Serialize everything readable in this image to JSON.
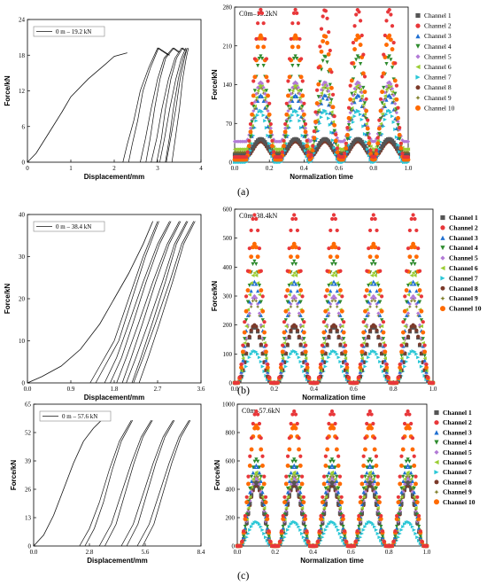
{
  "panel_labels": [
    "(a)",
    "(b)",
    "(c)"
  ],
  "chart_data": [
    {
      "type": "line",
      "panel": "a-left",
      "legend": "0 m – 19.2 kN",
      "xlabel": "Displacement/mm",
      "ylabel": "Force/kN",
      "xlim": [
        0,
        4
      ],
      "ylim": [
        0,
        24
      ],
      "xticks": [
        "0",
        "1",
        "2",
        "3",
        "4"
      ],
      "yticks": [
        "0",
        "6",
        "12",
        "18",
        "24"
      ],
      "loops": [
        [
          [
            2.2,
            0
          ],
          [
            2.3,
            3
          ],
          [
            2.45,
            7
          ],
          [
            2.6,
            12
          ],
          [
            2.8,
            16
          ],
          [
            3.0,
            19.2
          ],
          [
            3.25,
            18
          ]
        ],
        [
          [
            2.6,
            0
          ],
          [
            2.72,
            4
          ],
          [
            2.85,
            9
          ],
          [
            3.0,
            14
          ],
          [
            3.15,
            17.5
          ],
          [
            3.35,
            19.2
          ],
          [
            3.48,
            18.5
          ]
        ],
        [
          [
            2.85,
            0
          ],
          [
            2.98,
            4
          ],
          [
            3.1,
            9
          ],
          [
            3.25,
            14
          ],
          [
            3.4,
            17.5
          ],
          [
            3.55,
            19.2
          ],
          [
            3.62,
            18.8
          ]
        ],
        [
          [
            3.05,
            0
          ],
          [
            3.16,
            4
          ],
          [
            3.28,
            9
          ],
          [
            3.42,
            14
          ],
          [
            3.55,
            17.5
          ],
          [
            3.65,
            19.2
          ]
        ],
        [
          [
            3.2,
            0
          ],
          [
            3.3,
            4
          ],
          [
            3.42,
            9
          ],
          [
            3.52,
            14
          ],
          [
            3.62,
            17.5
          ],
          [
            3.68,
            19.2
          ]
        ]
      ],
      "initial": [
        [
          0,
          0
        ],
        [
          0.2,
          1.5
        ],
        [
          0.5,
          5
        ],
        [
          0.8,
          8.5
        ],
        [
          1.0,
          11
        ],
        [
          1.4,
          14
        ],
        [
          1.8,
          16.5
        ],
        [
          2.0,
          17.8
        ],
        [
          2.3,
          18.4
        ]
      ]
    },
    {
      "type": "scatter",
      "panel": "a-right",
      "title": "C0m–19.2kN",
      "xlabel": "Normalization time",
      "ylabel": "Force/kN",
      "xlim": [
        0,
        1
      ],
      "ylim": [
        0,
        300
      ],
      "xticks": [
        "0.0",
        "0.2",
        "0.4",
        "0.6",
        "0.8",
        "1.0"
      ],
      "yticks": [
        "0",
        "70",
        "140",
        "210",
        "280"
      ],
      "series_names": [
        "Channel 1",
        "Channel 2",
        "Channel 3",
        "Channel 4",
        "Channel 5",
        "Channel 6",
        "Channel 7",
        "Channel 8",
        "Channel 9",
        "Channel 10"
      ],
      "peaks": [
        45,
        295,
        130,
        205,
        155,
        150,
        100,
        40,
        145,
        245
      ],
      "baseline": [
        15,
        10,
        5,
        5,
        40,
        25,
        0,
        10,
        20,
        5
      ],
      "cycle_centers": [
        0.15,
        0.35,
        0.52,
        0.71,
        0.89
      ]
    },
    {
      "type": "line",
      "panel": "b-left",
      "legend": "0 m – 38.4 kN",
      "xlabel": "Displacement/mm",
      "ylabel": "Force/kN",
      "xlim": [
        0,
        3.6
      ],
      "ylim": [
        0,
        40
      ],
      "xticks": [
        "0.0",
        "0.9",
        "1.8",
        "2.7",
        "3.6"
      ],
      "yticks": [
        "0",
        "10",
        "20",
        "30",
        "40"
      ],
      "loops": [
        [
          [
            1.3,
            0
          ],
          [
            1.5,
            4
          ],
          [
            1.8,
            10
          ],
          [
            2.1,
            20
          ],
          [
            2.4,
            30
          ],
          [
            2.7,
            38.4
          ]
        ],
        [
          [
            1.6,
            0
          ],
          [
            1.85,
            6
          ],
          [
            2.1,
            14
          ],
          [
            2.4,
            24
          ],
          [
            2.7,
            33
          ],
          [
            2.95,
            38.4
          ]
        ],
        [
          [
            1.85,
            0
          ],
          [
            2.05,
            6
          ],
          [
            2.3,
            14
          ],
          [
            2.6,
            24
          ],
          [
            2.9,
            33
          ],
          [
            3.15,
            38.4
          ]
        ],
        [
          [
            2.05,
            0
          ],
          [
            2.25,
            6
          ],
          [
            2.5,
            14
          ],
          [
            2.8,
            24
          ],
          [
            3.05,
            33
          ],
          [
            3.3,
            38.4
          ]
        ],
        [
          [
            2.2,
            0
          ],
          [
            2.4,
            6
          ],
          [
            2.65,
            14
          ],
          [
            2.95,
            24
          ],
          [
            3.2,
            33
          ],
          [
            3.45,
            38.4
          ]
        ]
      ],
      "initial": [
        [
          0,
          0
        ],
        [
          0.3,
          1.5
        ],
        [
          0.7,
          4
        ],
        [
          1.1,
          8
        ],
        [
          1.5,
          14
        ],
        [
          1.8,
          20
        ],
        [
          2.1,
          26
        ],
        [
          2.4,
          33
        ],
        [
          2.6,
          38.4
        ]
      ]
    },
    {
      "type": "scatter",
      "panel": "b-right",
      "title": "C0m–38.4kN",
      "xlabel": "Normalization time",
      "ylabel": "Force/kN",
      "xlim": [
        0,
        1
      ],
      "ylim": [
        0,
        600
      ],
      "xticks": [
        "0.0",
        "0.2",
        "0.4",
        "0.6",
        "0.8",
        "1.0"
      ],
      "yticks": [
        "0",
        "100",
        "200",
        "300",
        "400",
        "500",
        "600"
      ],
      "series_names": [
        "Channel 1",
        "Channel 2",
        "Channel 3",
        "Channel 4",
        "Channel 5",
        "Channel 6",
        "Channel 7",
        "Channel 8",
        "Channel 9",
        "Channel 10"
      ],
      "peaks": [
        195,
        580,
        350,
        420,
        300,
        380,
        110,
        200,
        290,
        480
      ],
      "baseline": [
        0,
        0,
        0,
        0,
        0,
        0,
        0,
        0,
        0,
        0
      ],
      "cycle_centers": [
        0.1,
        0.3,
        0.5,
        0.7,
        0.9
      ]
    },
    {
      "type": "line",
      "panel": "c-left",
      "legend": "0 m – 57.6 kN",
      "xlabel": "Displacement/mm",
      "ylabel": "Force/kN",
      "xlim": [
        0,
        8.4
      ],
      "ylim": [
        0,
        65
      ],
      "xticks": [
        "0.0",
        "2.8",
        "5.6",
        "8.4"
      ],
      "yticks": [
        "0",
        "13",
        "26",
        "39",
        "52",
        "65"
      ],
      "loops": [
        [
          [
            2.3,
            0
          ],
          [
            2.8,
            8
          ],
          [
            3.3,
            20
          ],
          [
            3.8,
            35
          ],
          [
            4.3,
            48
          ],
          [
            4.9,
            57.6
          ]
        ],
        [
          [
            3.3,
            0
          ],
          [
            3.9,
            10
          ],
          [
            4.4,
            24
          ],
          [
            4.9,
            38
          ],
          [
            5.4,
            50
          ],
          [
            5.9,
            57.6
          ]
        ],
        [
          [
            4.4,
            0
          ],
          [
            5.0,
            10
          ],
          [
            5.5,
            24
          ],
          [
            6.0,
            38
          ],
          [
            6.5,
            50
          ],
          [
            7.0,
            57.6
          ]
        ],
        [
          [
            5.2,
            0
          ],
          [
            5.8,
            10
          ],
          [
            6.3,
            24
          ],
          [
            6.8,
            38
          ],
          [
            7.3,
            50
          ],
          [
            7.8,
            57.6
          ]
        ]
      ],
      "initial": [
        [
          0,
          0
        ],
        [
          0.5,
          5
        ],
        [
          1.0,
          14
        ],
        [
          1.5,
          26
        ],
        [
          2.0,
          38
        ],
        [
          2.5,
          48
        ],
        [
          3.0,
          54
        ],
        [
          3.4,
          57.6
        ]
      ]
    },
    {
      "type": "scatter",
      "panel": "c-right",
      "title": "C0m–57.6kN",
      "xlabel": "Normalization time",
      "ylabel": "Force/kN",
      "xlim": [
        0,
        1
      ],
      "ylim": [
        0,
        1000
      ],
      "xticks": [
        "0.0",
        "0.2",
        "0.4",
        "0.6",
        "0.8",
        "1.0"
      ],
      "yticks": [
        "0",
        "200",
        "400",
        "600",
        "800",
        "1000"
      ],
      "series_names": [
        "Channel 1",
        "Channel 2",
        "Channel 3",
        "Channel 4",
        "Channel 5",
        "Channel 6",
        "Channel 7",
        "Channel 8",
        "Channel 9",
        "Channel 10"
      ],
      "peaks": [
        450,
        950,
        570,
        610,
        480,
        520,
        170,
        430,
        500,
        850
      ],
      "baseline": [
        0,
        0,
        0,
        0,
        0,
        0,
        0,
        0,
        0,
        0
      ],
      "cycle_centers": [
        0.1,
        0.3,
        0.5,
        0.7,
        0.9
      ]
    }
  ],
  "colors": [
    "#555555",
    "#e8373a",
    "#1f6fd1",
    "#2e8b2e",
    "#b27ad6",
    "#9acd32",
    "#2ac7d6",
    "#7b3a2a",
    "#7a7a22",
    "#ff6a00"
  ],
  "markers": [
    "square",
    "circle",
    "triangle-up",
    "triangle-down",
    "diamond",
    "triangle-left",
    "triangle-right",
    "hexagon",
    "star",
    "circle-big"
  ]
}
